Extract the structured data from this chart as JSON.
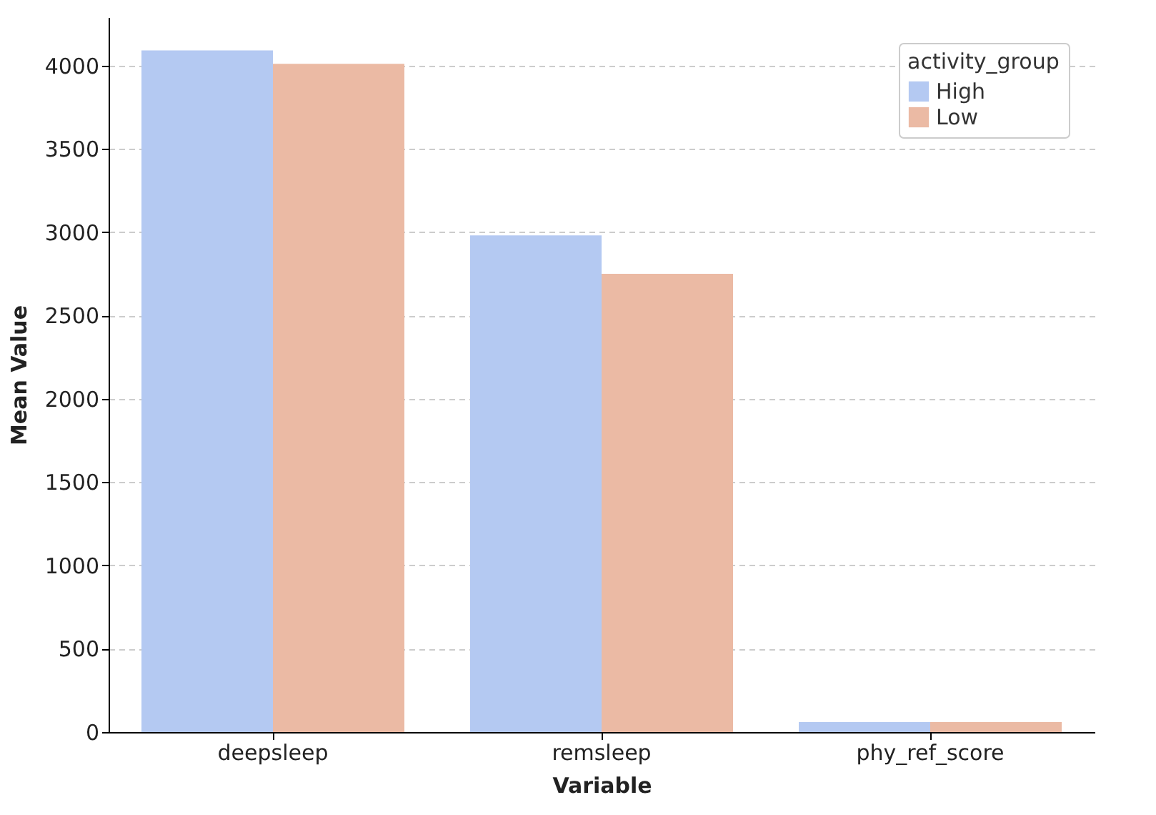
{
  "chart_data": {
    "type": "bar",
    "xlabel": "Variable",
    "ylabel": "Mean Value",
    "legend_title": "activity_group",
    "categories": [
      "deepsleep",
      "remsleep",
      "phy_ref_score"
    ],
    "series": [
      {
        "name": "High",
        "color": "#b4c9f2",
        "values": [
          4090,
          2980,
          60
        ]
      },
      {
        "name": "Low",
        "color": "#ebbaa4",
        "values": [
          4010,
          2750,
          60
        ]
      }
    ],
    "ylim": [
      0,
      4290
    ],
    "yticks": [
      0,
      500,
      1000,
      1500,
      2000,
      2500,
      3000,
      3500,
      4000
    ],
    "grid": "y",
    "legend": "top right"
  }
}
